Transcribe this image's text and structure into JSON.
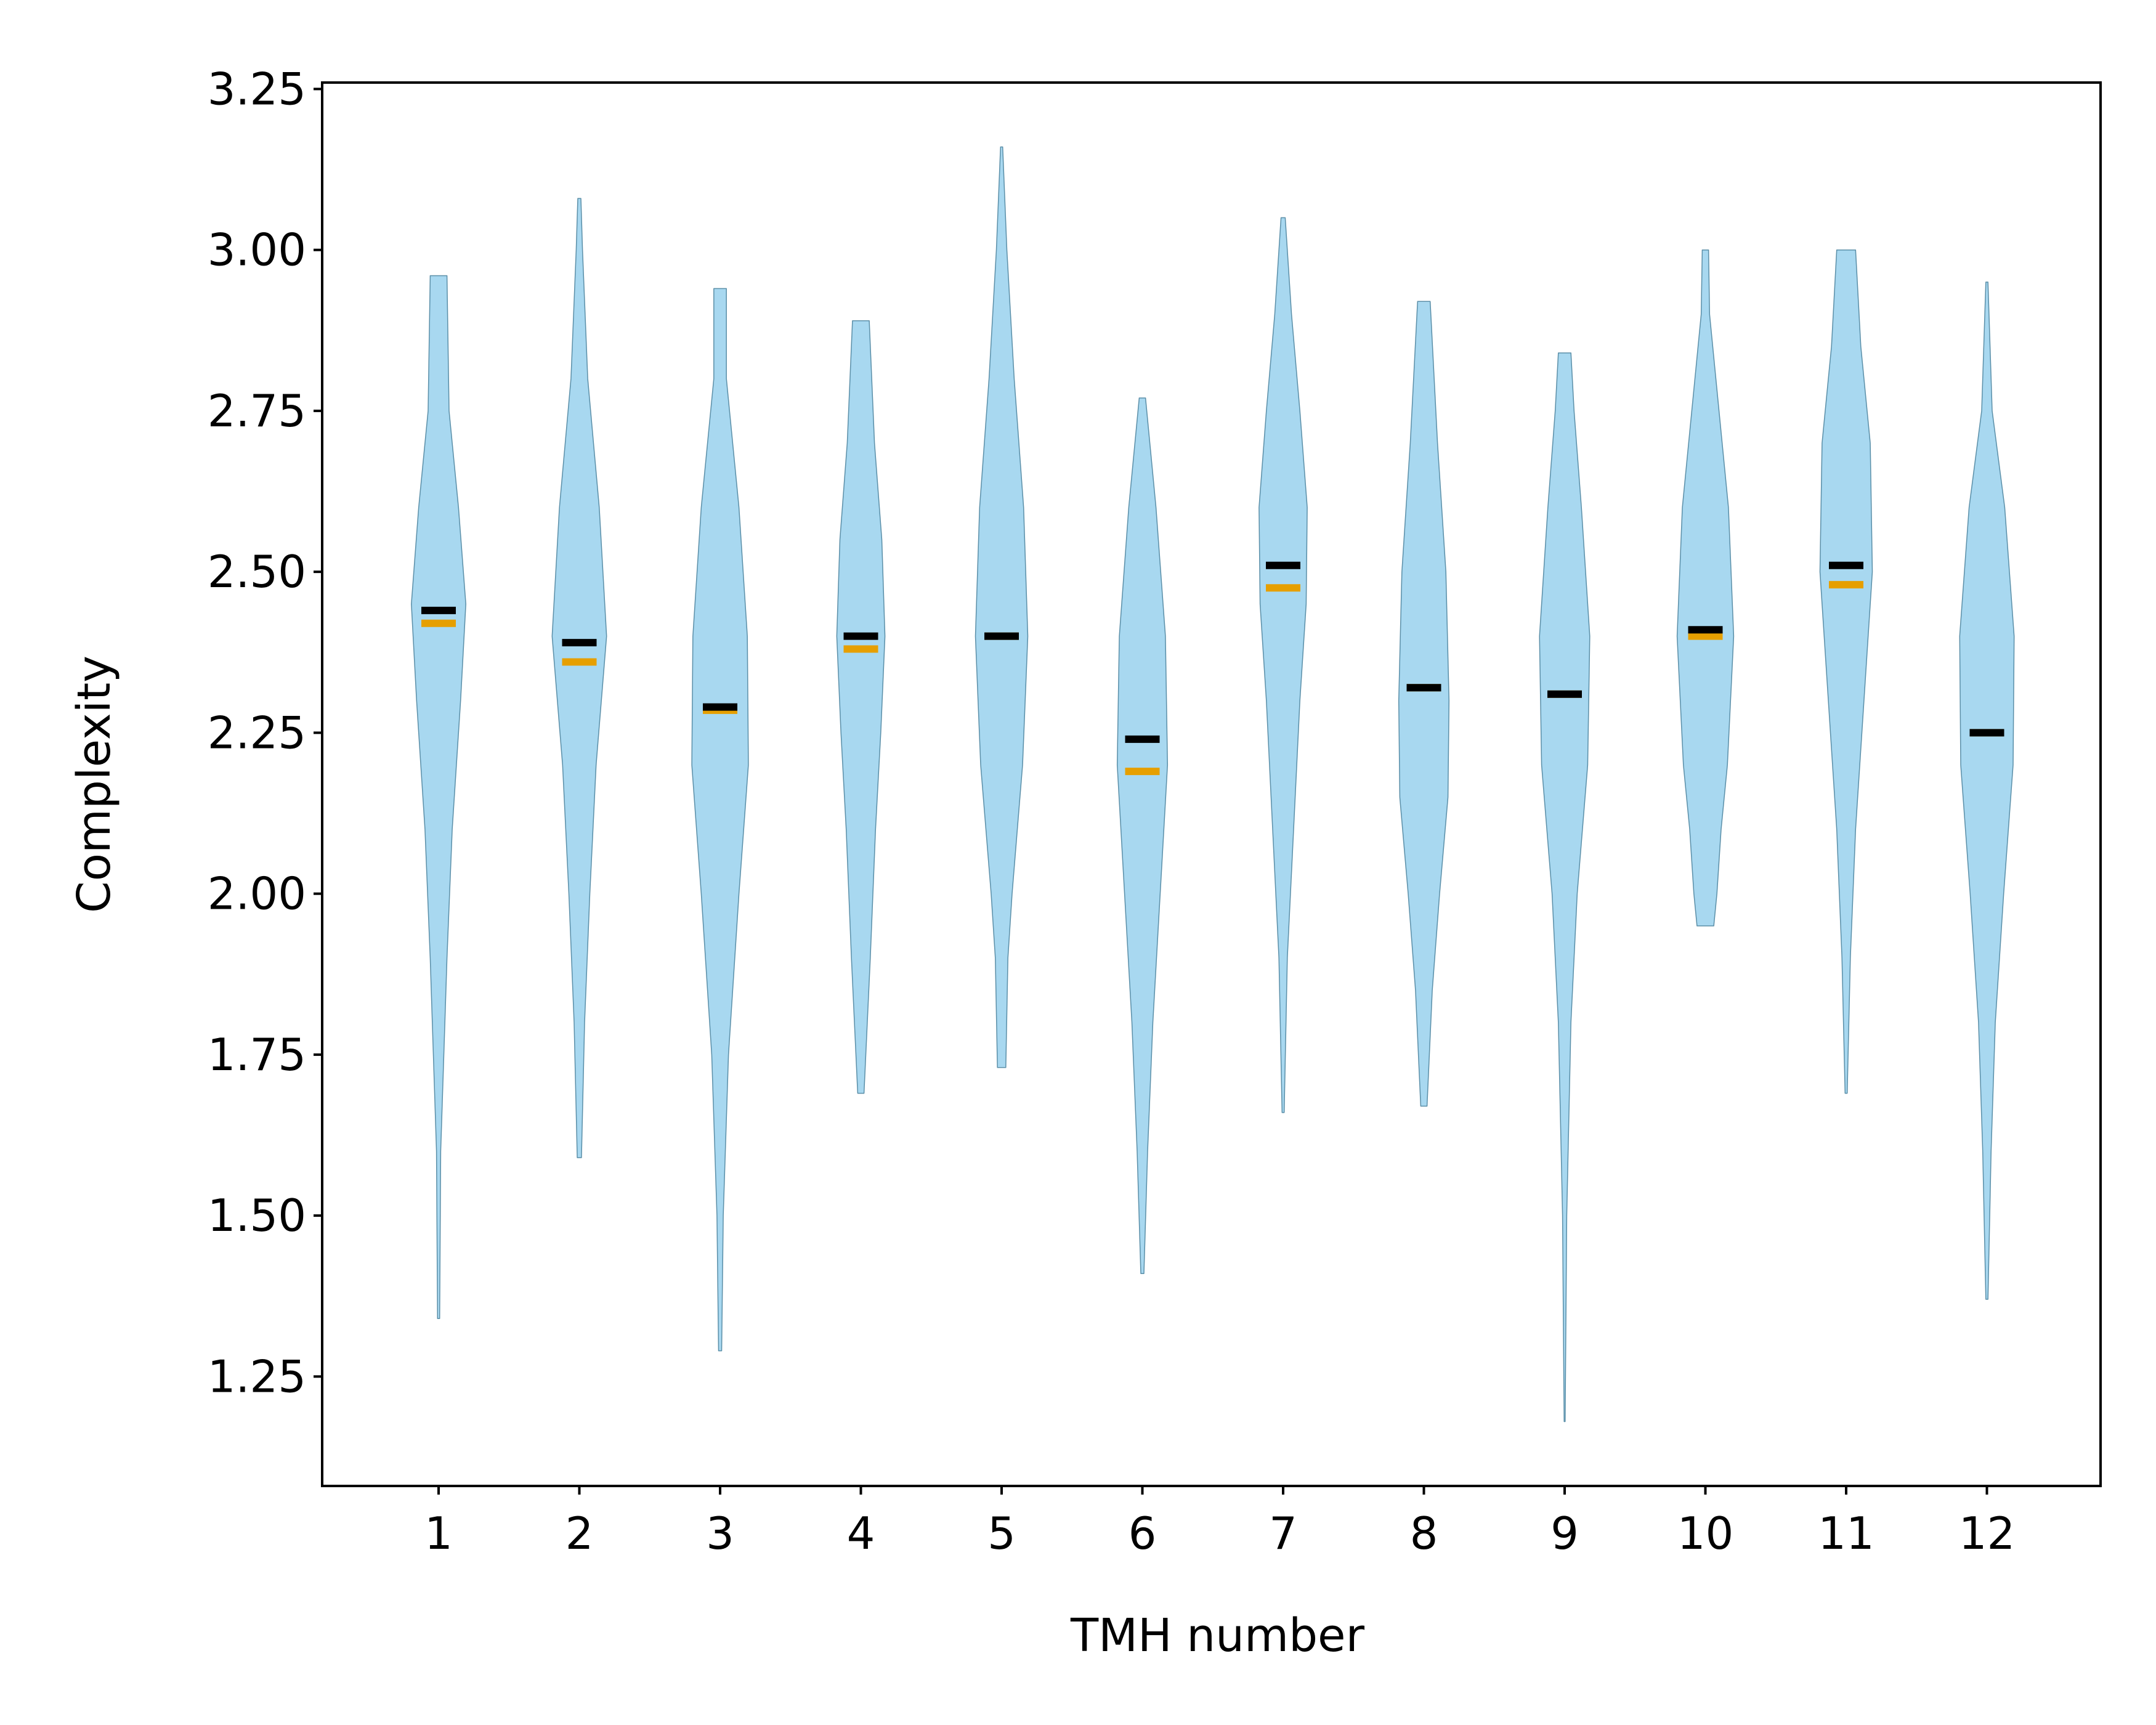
{
  "chart_data": {
    "type": "violin",
    "title": "",
    "xlabel": "TMH number",
    "ylabel": "Complexity",
    "ylim": [
      1.08,
      3.26
    ],
    "yticks": [
      "1.25",
      "1.50",
      "1.75",
      "2.00",
      "2.25",
      "2.50",
      "2.75",
      "3.00",
      "3.25"
    ],
    "categories": [
      "1",
      "2",
      "3",
      "4",
      "5",
      "6",
      "7",
      "8",
      "9",
      "10",
      "11",
      "12"
    ],
    "grid": false,
    "legend": "none",
    "colors": {
      "violin_fill": "#a8d8f0",
      "violin_edge": "#5b8fa8",
      "mean": "#000000",
      "median": "#e69f00"
    },
    "series": [
      {
        "category": "1",
        "min": 1.34,
        "max": 2.96,
        "mean": 2.44,
        "median": 2.42,
        "profile": [
          [
            1.34,
            0.1
          ],
          [
            1.6,
            0.2
          ],
          [
            1.9,
            0.8
          ],
          [
            2.1,
            1.3
          ],
          [
            2.3,
            2.1
          ],
          [
            2.45,
            2.6
          ],
          [
            2.6,
            1.9
          ],
          [
            2.75,
            1.0
          ],
          [
            2.96,
            0.8
          ]
        ]
      },
      {
        "category": "2",
        "min": 1.59,
        "max": 3.08,
        "mean": 2.39,
        "median": 2.36,
        "profile": [
          [
            1.59,
            0.2
          ],
          [
            1.8,
            0.5
          ],
          [
            2.0,
            1.0
          ],
          [
            2.2,
            1.6
          ],
          [
            2.4,
            2.6
          ],
          [
            2.6,
            1.9
          ],
          [
            2.8,
            0.8
          ],
          [
            3.0,
            0.3
          ],
          [
            3.08,
            0.15
          ]
        ]
      },
      {
        "category": "3",
        "min": 1.29,
        "max": 2.94,
        "mean": 2.29,
        "median": 2.285,
        "profile": [
          [
            1.29,
            0.15
          ],
          [
            1.5,
            0.3
          ],
          [
            1.75,
            0.8
          ],
          [
            2.0,
            1.8
          ],
          [
            2.2,
            2.7
          ],
          [
            2.4,
            2.6
          ],
          [
            2.6,
            1.8
          ],
          [
            2.8,
            0.6
          ],
          [
            2.94,
            0.6
          ]
        ]
      },
      {
        "category": "4",
        "min": 1.69,
        "max": 2.89,
        "mean": 2.4,
        "median": 2.38,
        "profile": [
          [
            1.69,
            0.3
          ],
          [
            1.9,
            0.9
          ],
          [
            2.1,
            1.4
          ],
          [
            2.25,
            1.9
          ],
          [
            2.4,
            2.3
          ],
          [
            2.55,
            2.0
          ],
          [
            2.7,
            1.3
          ],
          [
            2.89,
            0.8
          ]
        ]
      },
      {
        "category": "5",
        "min": 1.73,
        "max": 3.16,
        "mean": 2.4,
        "median": 2.4,
        "profile": [
          [
            1.73,
            0.4
          ],
          [
            1.9,
            0.6
          ],
          [
            2.0,
            1.0
          ],
          [
            2.2,
            2.0
          ],
          [
            2.4,
            2.5
          ],
          [
            2.6,
            2.1
          ],
          [
            2.8,
            1.2
          ],
          [
            3.0,
            0.5
          ],
          [
            3.16,
            0.1
          ]
        ]
      },
      {
        "category": "6",
        "min": 1.41,
        "max": 2.77,
        "mean": 2.24,
        "median": 2.19,
        "profile": [
          [
            1.41,
            0.15
          ],
          [
            1.6,
            0.5
          ],
          [
            1.8,
            1.0
          ],
          [
            2.0,
            1.7
          ],
          [
            2.2,
            2.4
          ],
          [
            2.4,
            2.2
          ],
          [
            2.6,
            1.3
          ],
          [
            2.77,
            0.3
          ]
        ]
      },
      {
        "category": "7",
        "min": 1.66,
        "max": 3.05,
        "mean": 2.51,
        "median": 2.475,
        "profile": [
          [
            1.66,
            0.1
          ],
          [
            1.9,
            0.4
          ],
          [
            2.1,
            1.0
          ],
          [
            2.3,
            1.6
          ],
          [
            2.45,
            2.2
          ],
          [
            2.6,
            2.3
          ],
          [
            2.75,
            1.6
          ],
          [
            2.9,
            0.8
          ],
          [
            3.05,
            0.2
          ]
        ]
      },
      {
        "category": "8",
        "min": 1.67,
        "max": 2.92,
        "mean": 2.32,
        "median": 2.32,
        "profile": [
          [
            1.67,
            0.3
          ],
          [
            1.85,
            0.8
          ],
          [
            2.0,
            1.5
          ],
          [
            2.15,
            2.3
          ],
          [
            2.3,
            2.4
          ],
          [
            2.5,
            2.1
          ],
          [
            2.7,
            1.3
          ],
          [
            2.92,
            0.6
          ]
        ]
      },
      {
        "category": "9",
        "min": 1.18,
        "max": 2.84,
        "mean": 2.31,
        "median": 2.31,
        "profile": [
          [
            1.18,
            0.05
          ],
          [
            1.5,
            0.2
          ],
          [
            1.8,
            0.6
          ],
          [
            2.0,
            1.2
          ],
          [
            2.2,
            2.2
          ],
          [
            2.4,
            2.4
          ],
          [
            2.6,
            1.6
          ],
          [
            2.75,
            0.9
          ],
          [
            2.84,
            0.6
          ]
        ]
      },
      {
        "category": "10",
        "min": 1.95,
        "max": 3.0,
        "mean": 2.41,
        "median": 2.4,
        "profile": [
          [
            1.95,
            0.8
          ],
          [
            2.0,
            1.1
          ],
          [
            2.1,
            1.5
          ],
          [
            2.2,
            2.1
          ],
          [
            2.4,
            2.7
          ],
          [
            2.6,
            2.2
          ],
          [
            2.8,
            1.0
          ],
          [
            2.9,
            0.4
          ],
          [
            3.0,
            0.3
          ]
        ]
      },
      {
        "category": "11",
        "min": 1.69,
        "max": 3.0,
        "mean": 2.51,
        "median": 2.48,
        "profile": [
          [
            1.69,
            0.1
          ],
          [
            1.9,
            0.4
          ],
          [
            2.1,
            0.9
          ],
          [
            2.3,
            1.7
          ],
          [
            2.5,
            2.5
          ],
          [
            2.7,
            2.3
          ],
          [
            2.85,
            1.4
          ],
          [
            3.0,
            0.9
          ]
        ]
      },
      {
        "category": "12",
        "min": 1.37,
        "max": 2.95,
        "mean": 2.25,
        "median": 2.25,
        "profile": [
          [
            1.37,
            0.1
          ],
          [
            1.6,
            0.4
          ],
          [
            1.8,
            0.8
          ],
          [
            2.0,
            1.6
          ],
          [
            2.2,
            2.5
          ],
          [
            2.4,
            2.6
          ],
          [
            2.6,
            1.7
          ],
          [
            2.75,
            0.5
          ],
          [
            2.95,
            0.1
          ]
        ]
      }
    ]
  }
}
